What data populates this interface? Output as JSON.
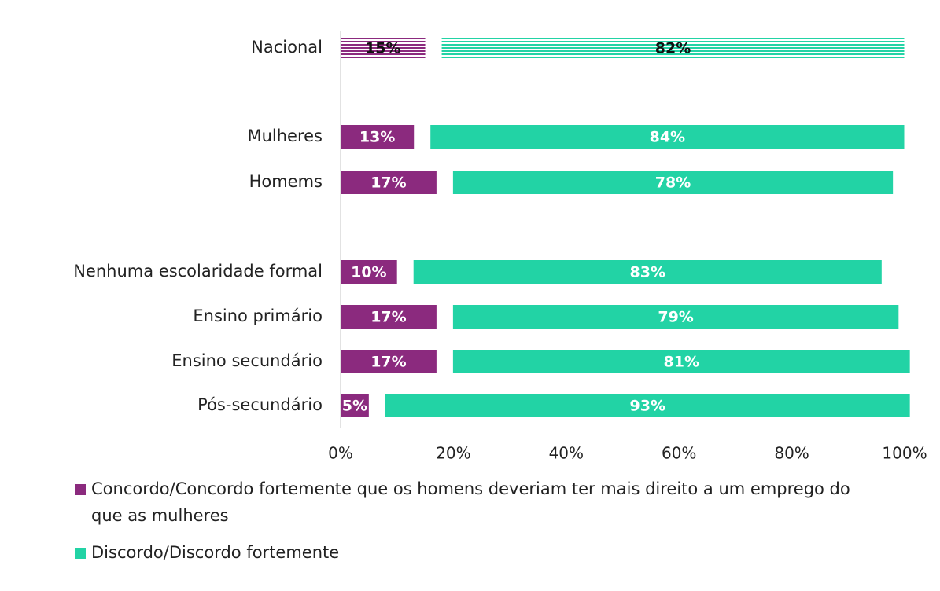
{
  "chart_data": {
    "type": "bar",
    "orientation": "horizontal",
    "stacked": true,
    "categories": [
      "Nacional",
      "Mulheres",
      "Homems",
      "Nenhuma escolaridade formal",
      "Ensino primário",
      "Ensino secundário",
      "Pós-secundário"
    ],
    "hatched": [
      0
    ],
    "series": [
      {
        "name": "Concordo/Concordo fortemente que os homens deveriam ter mais direito a um emprego do que as mulheres",
        "color": "#8b2a7e",
        "values": [
          15,
          13,
          17,
          10,
          17,
          17,
          5
        ],
        "value_labels": [
          "15%",
          "13%",
          "17%",
          "10%",
          "17%",
          "17%",
          "5%"
        ]
      },
      {
        "name": "Discordo/Discordo fortemente",
        "color": "#22d3a5",
        "values": [
          82,
          84,
          78,
          83,
          79,
          81,
          93
        ],
        "value_labels": [
          "82%",
          "84%",
          "78%",
          "83%",
          "79%",
          "81%",
          "93%"
        ]
      }
    ],
    "xlim": [
      0,
      100
    ],
    "xticks": [
      {
        "value": 0,
        "label": "0%"
      },
      {
        "value": 20,
        "label": "20%"
      },
      {
        "value": 40,
        "label": "40%"
      },
      {
        "value": 60,
        "label": "60%"
      },
      {
        "value": 80,
        "label": "80%"
      },
      {
        "value": 100,
        "label": "100%"
      }
    ]
  }
}
